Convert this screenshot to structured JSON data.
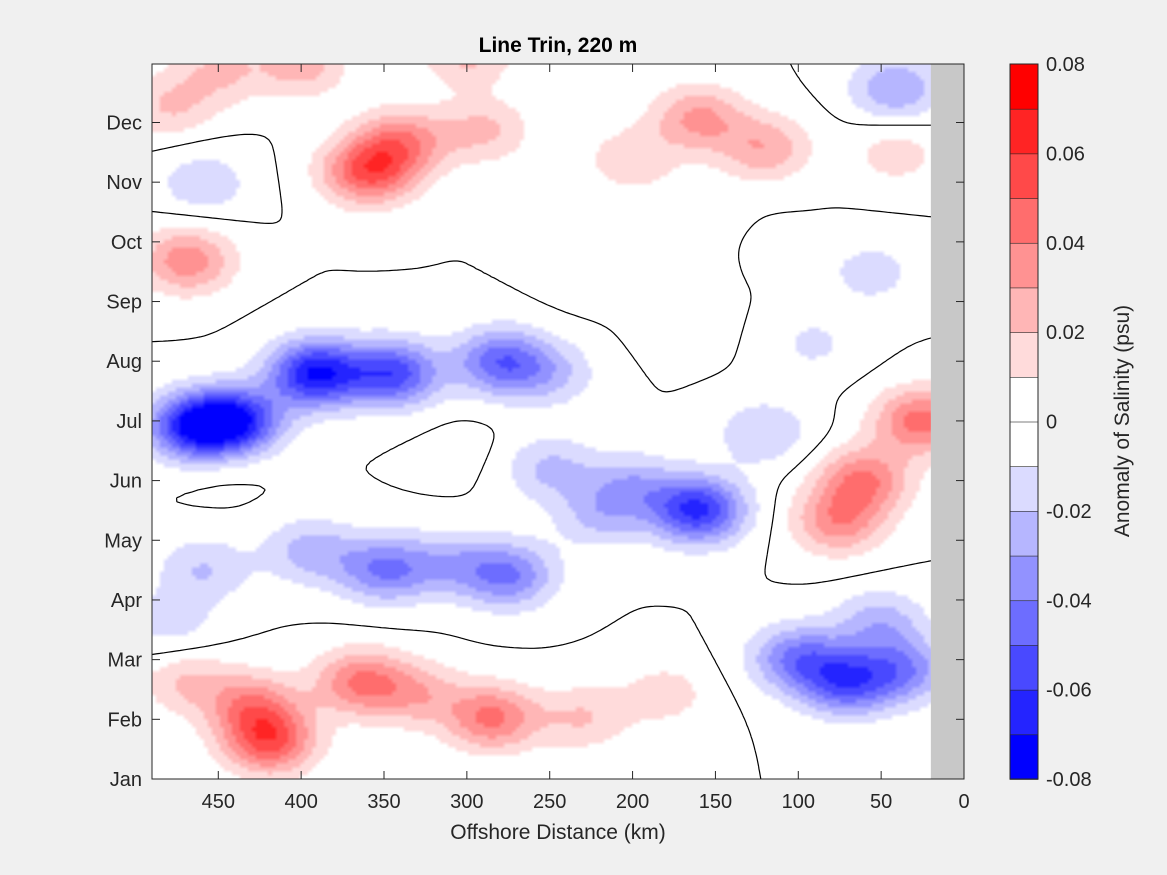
{
  "chart_data": {
    "type": "heatmap",
    "title": "Line Trin, 220 m",
    "xlabel": "Offshore Distance (km)",
    "ylabel": "",
    "colorbar_label": "Anomaly of Salinity (psu)",
    "xlim": [
      490,
      0
    ],
    "x_reversed": true,
    "x_ticks": [
      450,
      400,
      350,
      300,
      250,
      200,
      150,
      100,
      50,
      0
    ],
    "x_tick_labels": [
      "450",
      "400",
      "350",
      "300",
      "250",
      "200",
      "150",
      "100",
      "50",
      "0"
    ],
    "y_ticks": [
      "Jan",
      "Feb",
      "Mar",
      "Apr",
      "May",
      "Jun",
      "Jul",
      "Aug",
      "Sep",
      "Oct",
      "Nov",
      "Dec"
    ],
    "clim": [
      -0.08,
      0.08
    ],
    "contour_interval": 0.01,
    "colorbar_ticks": [
      0.08,
      0.06,
      0.04,
      0.02,
      0,
      -0.02,
      -0.04,
      -0.06,
      -0.08
    ],
    "colorbar_tick_labels": [
      "0.08",
      "0.06",
      "0.04",
      "0.02",
      "0",
      "-0.02",
      "-0.04",
      "-0.06",
      "-0.08"
    ],
    "no_data_region_km": [
      20,
      0
    ],
    "zero_contour_line": true,
    "grid": false,
    "colors": {
      "positive_max": "#ff0000",
      "negative_max": "#0000ff",
      "zero": "#ffffff",
      "no_data": "#c8c8c8",
      "contour": "#000000"
    },
    "anomaly_features": [
      {
        "x": 470,
        "month": 8.7,
        "value": 0.037
      },
      {
        "x": 480,
        "month": 11.3,
        "value": 0.02
      },
      {
        "x": 400,
        "month": 12.0,
        "value": 0.025
      },
      {
        "x": 450,
        "month": 11.9,
        "value": 0.02
      },
      {
        "x": 360,
        "month": 10.2,
        "value": 0.05
      },
      {
        "x": 340,
        "month": 10.7,
        "value": 0.036
      },
      {
        "x": 290,
        "month": 10.9,
        "value": 0.022
      },
      {
        "x": 300,
        "month": 12.2,
        "value": 0.024
      },
      {
        "x": 160,
        "month": 11.1,
        "value": 0.032
      },
      {
        "x": 120,
        "month": 10.6,
        "value": 0.028
      },
      {
        "x": 200,
        "month": 10.4,
        "value": 0.018
      },
      {
        "x": 40,
        "month": 10.5,
        "value": 0.015
      },
      {
        "x": 460,
        "month": 10.0,
        "value": -0.018
      },
      {
        "x": 350,
        "month": 12.2,
        "value": -0.002
      },
      {
        "x": 392,
        "month": 6.8,
        "value": -0.07
      },
      {
        "x": 440,
        "month": 6.0,
        "value": -0.06
      },
      {
        "x": 465,
        "month": 5.9,
        "value": -0.066
      },
      {
        "x": 345,
        "month": 6.8,
        "value": -0.055
      },
      {
        "x": 280,
        "month": 7.0,
        "value": -0.045
      },
      {
        "x": 250,
        "month": 5.2,
        "value": -0.022
      },
      {
        "x": 200,
        "month": 4.9,
        "value": -0.025
      },
      {
        "x": 160,
        "month": 4.5,
        "value": -0.062
      },
      {
        "x": 220,
        "month": 4.4,
        "value": -0.02
      },
      {
        "x": 120,
        "month": 5.8,
        "value": -0.02
      },
      {
        "x": 350,
        "month": 3.5,
        "value": -0.04
      },
      {
        "x": 395,
        "month": 3.8,
        "value": -0.025
      },
      {
        "x": 275,
        "month": 3.4,
        "value": -0.04
      },
      {
        "x": 310,
        "month": 3.6,
        "value": -0.022
      },
      {
        "x": 300,
        "month": 5.5,
        "value": 0.004
      },
      {
        "x": 450,
        "month": 5.3,
        "value": 0.005
      },
      {
        "x": 70,
        "month": 1.6,
        "value": -0.05
      },
      {
        "x": 100,
        "month": 2.0,
        "value": -0.04
      },
      {
        "x": 50,
        "month": 2.6,
        "value": -0.025
      },
      {
        "x": 35,
        "month": 1.8,
        "value": -0.035
      },
      {
        "x": 40,
        "month": 11.6,
        "value": -0.03
      },
      {
        "x": 55,
        "month": 8.5,
        "value": -0.015
      },
      {
        "x": 90,
        "month": 7.3,
        "value": -0.012
      },
      {
        "x": 25,
        "month": 6.0,
        "value": 0.045
      },
      {
        "x": 60,
        "month": 5.0,
        "value": 0.04
      },
      {
        "x": 75,
        "month": 4.3,
        "value": 0.035
      },
      {
        "x": 420,
        "month": 0.6,
        "value": 0.05
      },
      {
        "x": 430,
        "month": 1.2,
        "value": 0.035
      },
      {
        "x": 365,
        "month": 1.6,
        "value": 0.04
      },
      {
        "x": 285,
        "month": 1.0,
        "value": 0.042
      },
      {
        "x": 330,
        "month": 1.4,
        "value": 0.024
      },
      {
        "x": 230,
        "month": 1.0,
        "value": 0.02
      },
      {
        "x": 180,
        "month": 1.4,
        "value": 0.015
      },
      {
        "x": 460,
        "month": 3.5,
        "value": -0.02
      },
      {
        "x": 480,
        "month": 2.6,
        "value": -0.015
      },
      {
        "x": 470,
        "month": 1.6,
        "value": 0.02
      },
      {
        "x": 120,
        "month": 8.9,
        "value": -0.002
      },
      {
        "x": 170,
        "month": 7.6,
        "value": 0.005
      },
      {
        "x": 170,
        "month": 8.6,
        "value": 0.004
      },
      {
        "x": 160,
        "month": 9.4,
        "value": 0.004
      },
      {
        "x": 230,
        "month": 8.3,
        "value": 0.003
      },
      {
        "x": 250,
        "month": 6.8,
        "value": -0.02
      }
    ],
    "feature_radius_km": 28,
    "feature_radius_months": 0.55
  }
}
